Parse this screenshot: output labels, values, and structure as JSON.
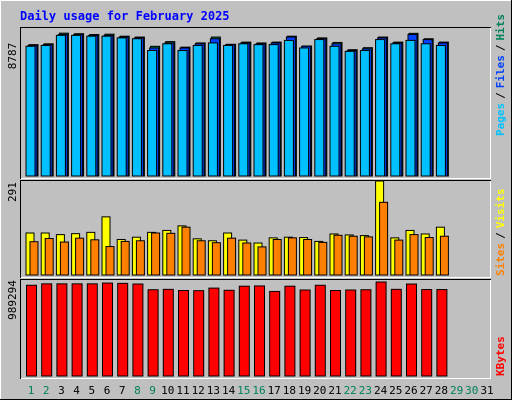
{
  "title": "Daily usage for February 2025",
  "legend": {
    "hits": "Hits",
    "files": "Files",
    "pages": "Pages",
    "visits": "Visits",
    "sites": "Sites",
    "kbytes": "KBytes",
    "sep": "/"
  },
  "colors": {
    "background": "#c0c0c0",
    "title": "#0000ff",
    "hits": "#00805c",
    "files": "#0040ff",
    "pages": "#00c0ff",
    "visits": "#ffff00",
    "sites": "#ff8000",
    "kbytes": "#ff0000",
    "day_weekday": "#000000",
    "day_weekend": "#00805c"
  },
  "chart_data": [
    {
      "type": "bar",
      "panel": "hits-files-pages",
      "ymax_label": "8787",
      "ylim": [
        0,
        8787
      ],
      "x": [
        1,
        2,
        3,
        4,
        5,
        6,
        7,
        8,
        9,
        10,
        11,
        12,
        13,
        14,
        15,
        16,
        17,
        18,
        19,
        20,
        21,
        22,
        23,
        24,
        25,
        26,
        27,
        28
      ],
      "series": [
        {
          "name": "Hits",
          "values": [
            7800,
            7850,
            8480,
            8450,
            8400,
            8420,
            8300,
            8250,
            7700,
            7980,
            7650,
            7900,
            8250,
            7820,
            7950,
            7900,
            7950,
            8300,
            7720,
            8200,
            7930,
            7500,
            7620,
            8250,
            7950,
            8470,
            8150,
            7950
          ]
        },
        {
          "name": "Files",
          "values": [
            7750,
            7800,
            8400,
            8400,
            8350,
            8350,
            8250,
            8200,
            7600,
            7900,
            7600,
            7850,
            8150,
            7800,
            7900,
            7850,
            7900,
            8250,
            7700,
            8150,
            7850,
            7450,
            7550,
            8200,
            7900,
            8400,
            8100,
            7900
          ]
        },
        {
          "name": "Pages",
          "values": [
            7700,
            7750,
            8350,
            8350,
            8300,
            8300,
            8200,
            8150,
            7450,
            7850,
            7450,
            7750,
            7900,
            7750,
            7850,
            7800,
            7800,
            8050,
            7600,
            8100,
            7700,
            7400,
            7450,
            8100,
            7850,
            8050,
            7850,
            7750
          ]
        }
      ]
    },
    {
      "type": "bar",
      "panel": "visits-sites",
      "ymax_label": "291",
      "ylim": [
        0,
        291
      ],
      "x": [
        1,
        2,
        3,
        4,
        5,
        6,
        7,
        8,
        9,
        10,
        11,
        12,
        13,
        14,
        15,
        16,
        17,
        18,
        19,
        20,
        21,
        22,
        23,
        24,
        25,
        26,
        27,
        28
      ],
      "series": [
        {
          "name": "Visits",
          "values": [
            130,
            130,
            125,
            128,
            132,
            180,
            110,
            117,
            132,
            138,
            152,
            112,
            106,
            130,
            108,
            99,
            115,
            117,
            116,
            104,
            127,
            124,
            122,
            291,
            115,
            138,
            127,
            148
          ]
        },
        {
          "name": "Sites",
          "values": [
            103,
            113,
            102,
            114,
            109,
            88,
            104,
            106,
            130,
            129,
            148,
            106,
            100,
            114,
            99,
            87,
            110,
            115,
            110,
            101,
            123,
            120,
            118,
            225,
            108,
            125,
            116,
            120
          ]
        }
      ]
    },
    {
      "type": "bar",
      "panel": "kbytes",
      "ymax_label": "989294",
      "ylim": [
        0,
        989294
      ],
      "x": [
        1,
        2,
        3,
        4,
        5,
        6,
        7,
        8,
        9,
        10,
        11,
        12,
        13,
        14,
        15,
        16,
        17,
        18,
        19,
        20,
        21,
        22,
        23,
        24,
        25,
        26,
        27,
        28
      ],
      "series": [
        {
          "name": "KBytes",
          "values": [
            955000,
            970000,
            970000,
            970000,
            970000,
            978000,
            975000,
            968000,
            908000,
            912000,
            900000,
            898000,
            925000,
            902000,
            945000,
            948000,
            890000,
            945000,
            905000,
            955000,
            900000,
            905000,
            908000,
            989294,
            912000,
            968000,
            910000,
            910000
          ]
        }
      ]
    }
  ],
  "days": [
    "1",
    "2",
    "3",
    "4",
    "5",
    "6",
    "7",
    "8",
    "9",
    "10",
    "11",
    "12",
    "13",
    "14",
    "15",
    "16",
    "17",
    "18",
    "19",
    "20",
    "21",
    "22",
    "23",
    "24",
    "25",
    "26",
    "27",
    "28",
    "29",
    "30",
    "31"
  ],
  "weekend_days": [
    "1",
    "2",
    "8",
    "9",
    "15",
    "16",
    "22",
    "23",
    "29",
    "30"
  ]
}
